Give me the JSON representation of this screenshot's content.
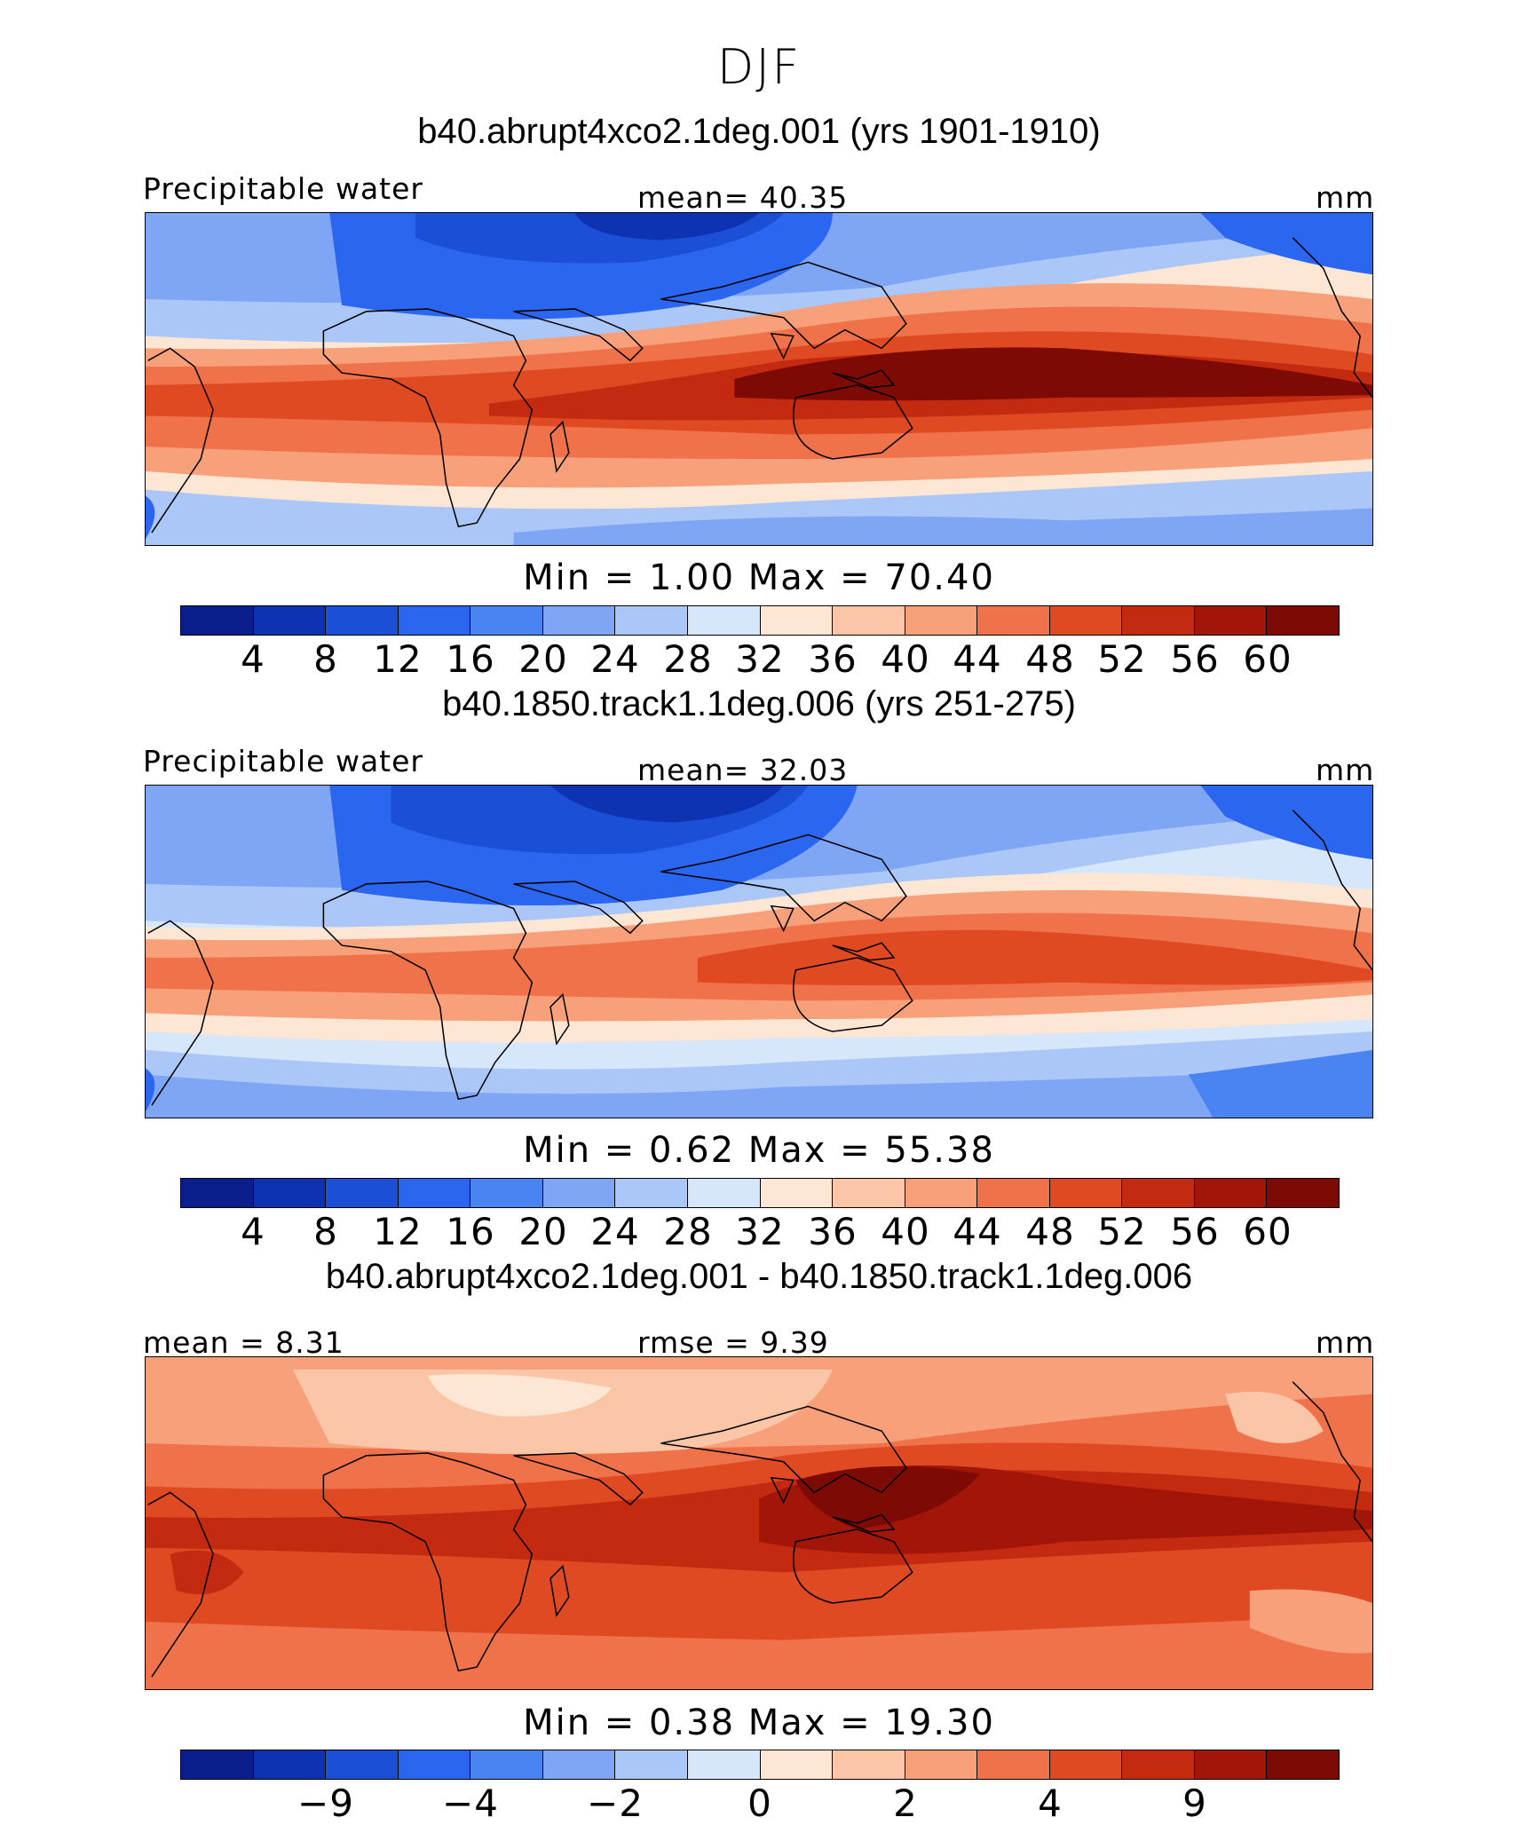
{
  "page_title": "DJF",
  "palette": [
    "#0b1f8c",
    "#0d33b3",
    "#1a4fd6",
    "#2a66f0",
    "#4a84f2",
    "#7ea6f5",
    "#aac7f8",
    "#d6e6fb",
    "#fde6d4",
    "#fbc5a7",
    "#f7a07a",
    "#f0724a",
    "#e04a22",
    "#c42a0f",
    "#a11608",
    "#7d0a04"
  ],
  "colorbar_labels": [
    "4",
    "8",
    "12",
    "16",
    "20",
    "24",
    "28",
    "32",
    "36",
    "40",
    "44",
    "48",
    "52",
    "56",
    "60"
  ],
  "diff_colorbar_labels": [
    "−9",
    "−4",
    "−2",
    "0",
    "2",
    "4",
    "9"
  ],
  "panels": [
    {
      "title": "b40.abrupt4xco2.1deg.001 (yrs 1901-1910)",
      "left_label": "Precipitable water",
      "center_label": "mean=   40.35",
      "units": "mm",
      "minmax": "Min  =     1.00  Max  =   70.40"
    },
    {
      "title": "b40.1850.track1.1deg.006 (yrs 251-275)",
      "left_label": "Precipitable water",
      "center_label": "mean=   32.03",
      "units": "mm",
      "minmax": "Min  =     0.62  Max  =   55.38"
    },
    {
      "title": "b40.abrupt4xco2.1deg.001 - b40.1850.track1.1deg.006",
      "left_label": "mean =    8.31",
      "center_label": "rmse  =    9.39",
      "units": "mm",
      "minmax": "Min  =     0.38  Max  =   19.30"
    }
  ]
}
